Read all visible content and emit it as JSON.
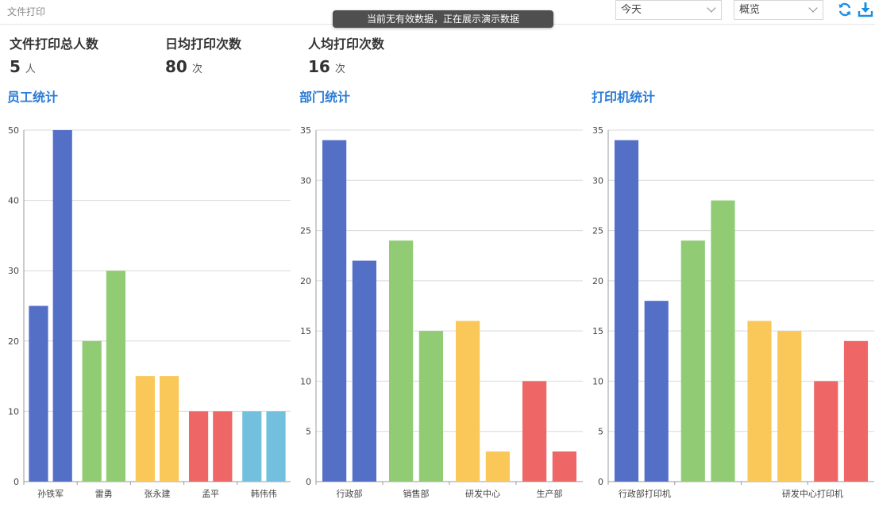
{
  "header": {
    "title": "文件打印",
    "toast": "当前无有效数据，正在展示演示数据",
    "date_select": "今天",
    "view_select": "概览",
    "refresh_icon": "refresh-icon",
    "download_icon": "download-icon"
  },
  "stats": [
    {
      "label": "文件打印总人数",
      "value": "5",
      "unit": "人"
    },
    {
      "label": "日均打印次数",
      "value": "80",
      "unit": "次"
    },
    {
      "label": "人均打印次数",
      "value": "16",
      "unit": "次"
    }
  ],
  "colors": [
    "#5470c6",
    "#91cc75",
    "#fac858",
    "#ee6666",
    "#73c0de"
  ],
  "chart_data": [
    {
      "type": "bar",
      "title": "员工统计",
      "categories": [
        "孙铁军",
        "雷勇",
        "张永建",
        "孟平",
        "韩伟伟"
      ],
      "series": [
        {
          "values": [
            25,
            20,
            15,
            10,
            10
          ]
        },
        {
          "values": [
            50,
            30,
            15,
            10,
            10
          ]
        }
      ],
      "ylim": [
        0,
        50
      ],
      "yticks": [
        0,
        10,
        20,
        30,
        40,
        50
      ],
      "grid": true
    },
    {
      "type": "bar",
      "title": "部门统计",
      "categories": [
        "行政部",
        "销售部",
        "研发中心",
        "生产部"
      ],
      "series": [
        {
          "values": [
            34,
            24,
            16,
            10
          ]
        },
        {
          "values": [
            22,
            15,
            3,
            3
          ]
        }
      ],
      "ylim": [
        0,
        35
      ],
      "yticks": [
        0,
        5,
        10,
        15,
        20,
        25,
        30,
        35
      ],
      "grid": true
    },
    {
      "type": "bar",
      "title": "打印机统计",
      "categories": [
        "行政部打印机",
        "",
        "研发中心打印机",
        ""
      ],
      "series": [
        {
          "values": [
            34,
            24,
            16,
            10
          ]
        },
        {
          "values": [
            18,
            28,
            15,
            14
          ]
        }
      ],
      "ylim": [
        0,
        35
      ],
      "yticks": [
        0,
        5,
        10,
        15,
        20,
        25,
        30,
        35
      ],
      "grid": true
    }
  ]
}
